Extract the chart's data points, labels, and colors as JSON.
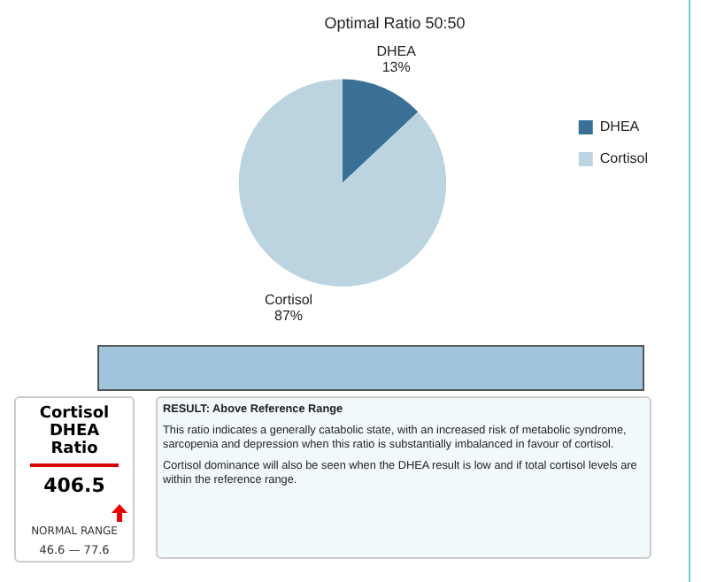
{
  "chart_data": {
    "type": "pie",
    "title": "Optimal Ratio 50:50",
    "categories": [
      "DHEA",
      "Cortisol"
    ],
    "values": [
      13,
      87
    ],
    "value_labels": [
      "13%",
      "87%"
    ],
    "colors": [
      "#3a7096",
      "#bcd3e0"
    ],
    "legend": "right",
    "annotations": [
      "Cortisol DHEA Ratio",
      "406.5",
      "NORMAL RANGE",
      "46.6 — 77.6",
      "RESULT: Above Reference Range",
      "This ratio indicates a generally catabolic state, with an increased risk of metabolic syndrome, sarcopenia and depression when this ratio is substantially imbalanced in favour of cortisol.",
      "Cortisol dominance will also be seen when the DHEA result is low and if total cortisol levels are within the reference range."
    ]
  }
}
